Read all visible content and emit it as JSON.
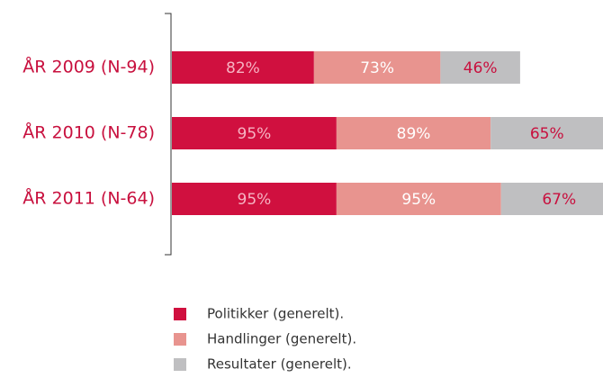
{
  "chart_data": {
    "type": "stacked_barh",
    "categories": [
      "ÅR 2009 (N-94)",
      "ÅR 2010 (N-78)",
      "ÅR 2011 (N-64)"
    ],
    "series": [
      {
        "name": "Politikker (generelt).",
        "color": "#d0103f",
        "values": [
          82,
          95,
          95
        ],
        "value_labels": [
          "82%",
          "95%",
          "95%"
        ]
      },
      {
        "name": "Handlinger (generelt).",
        "color": "#e8948f",
        "values": [
          73,
          89,
          95
        ],
        "value_labels": [
          "73%",
          "89%",
          "95%"
        ]
      },
      {
        "name": "Resultater (generelt).",
        "color": "#bfbfc1",
        "values": [
          46,
          65,
          67
        ],
        "value_labels": [
          "46%",
          "65%",
          "67%"
        ]
      }
    ]
  }
}
